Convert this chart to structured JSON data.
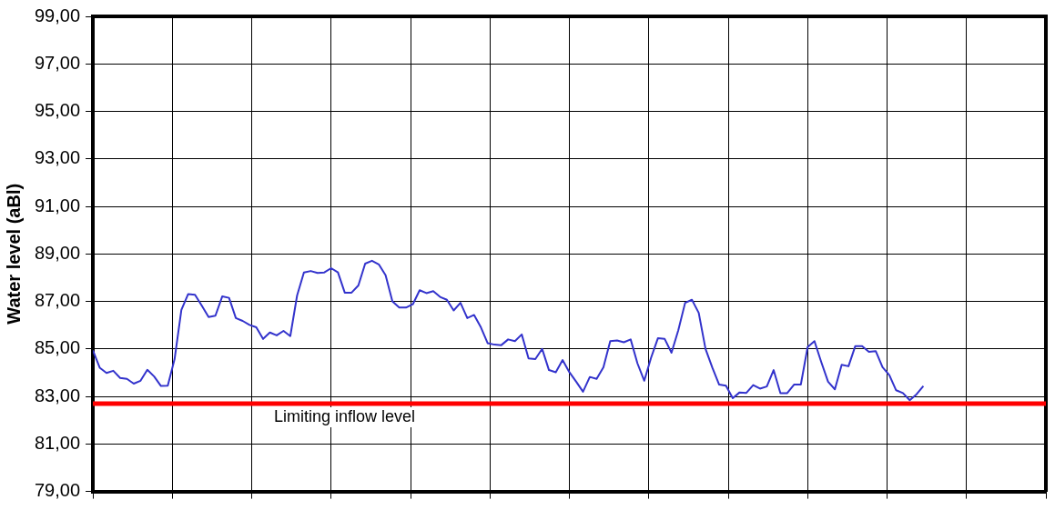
{
  "chart_data": {
    "type": "line",
    "ylabel": "Water level (aBl)",
    "categories": [
      null,
      null,
      null,
      null,
      null,
      null,
      null,
      null,
      null,
      null,
      null,
      null,
      null,
      null,
      null,
      null,
      null,
      null,
      null,
      null,
      null,
      null,
      null,
      null,
      null,
      null,
      null,
      null,
      null,
      null,
      null,
      null,
      null,
      null,
      null,
      null,
      null,
      null,
      null,
      null,
      null,
      null,
      null,
      null,
      null,
      null,
      null,
      null,
      null,
      null,
      null,
      null,
      null,
      null,
      null,
      null,
      null,
      null,
      null,
      null,
      null,
      null,
      null,
      null,
      null,
      null,
      null,
      null,
      null,
      null,
      null,
      null,
      null,
      null,
      null,
      null,
      null,
      null,
      null,
      null,
      null,
      null,
      null,
      null,
      null,
      null,
      null,
      null,
      null,
      null,
      null,
      null,
      null,
      null,
      null,
      null,
      null,
      null,
      null,
      null,
      null,
      null,
      null,
      null,
      null,
      null,
      null,
      null,
      null,
      null,
      null,
      null,
      null,
      null,
      null,
      null,
      null,
      null,
      null,
      null,
      null,
      null,
      null,
      null,
      null,
      null,
      null,
      null,
      null,
      null,
      null,
      null,
      null,
      null,
      null,
      null,
      null,
      null,
      null,
      null,
      null
    ],
    "ylim": [
      79,
      99
    ],
    "yticks": [
      {
        "value": 79,
        "label": "79,00"
      },
      {
        "value": 81,
        "label": "81,00"
      },
      {
        "value": 83,
        "label": "83,00"
      },
      {
        "value": 85,
        "label": "85,00"
      },
      {
        "value": 87,
        "label": "87,00"
      },
      {
        "value": 89,
        "label": "89,00"
      },
      {
        "value": 91,
        "label": "91,00"
      },
      {
        "value": 93,
        "label": "93,00"
      },
      {
        "value": 95,
        "label": "95,00"
      },
      {
        "value": 97,
        "label": "97,00"
      },
      {
        "value": 99,
        "label": "99,00"
      }
    ],
    "grid": true,
    "legend": false,
    "marker": "none",
    "line_style": "solid",
    "series": [
      {
        "color": "#3333cc",
        "values": [
          84.94,
          84.21,
          83.99,
          84.08,
          83.78,
          83.74,
          83.54,
          83.66,
          84.12,
          83.84,
          83.44,
          83.45,
          84.57,
          86.64,
          87.31,
          87.28,
          86.82,
          86.34,
          86.4,
          87.21,
          87.15,
          86.3,
          86.18,
          86.01,
          85.91,
          85.42,
          85.69,
          85.57,
          85.76,
          85.54,
          87.25,
          88.22,
          88.28,
          88.2,
          88.22,
          88.4,
          88.22,
          87.37,
          87.37,
          87.67,
          88.59,
          88.71,
          88.56,
          88.1,
          87.0,
          86.74,
          86.74,
          86.88,
          87.47,
          87.35,
          87.43,
          87.19,
          87.07,
          86.62,
          86.94,
          86.3,
          86.43,
          85.91,
          85.24,
          85.18,
          85.16,
          85.4,
          85.33,
          85.61,
          84.6,
          84.57,
          85.0,
          84.11,
          84.02,
          84.53,
          84.02,
          83.62,
          83.2,
          83.82,
          83.74,
          84.23,
          85.33,
          85.36,
          85.28,
          85.4,
          84.39,
          83.66,
          84.63,
          85.45,
          85.42,
          84.84,
          85.79,
          86.94,
          87.07,
          86.52,
          85.0,
          84.21,
          83.5,
          83.45,
          82.93,
          83.17,
          83.15,
          83.48,
          83.33,
          83.42,
          84.11,
          83.14,
          83.14,
          83.5,
          83.5,
          85.08,
          85.33,
          84.45,
          83.62,
          83.3,
          84.33,
          84.27,
          85.12,
          85.12,
          84.88,
          84.91,
          84.23,
          83.9,
          83.26,
          83.14,
          82.84,
          83.09,
          83.44,
          null,
          null,
          null,
          null,
          null,
          null,
          null,
          null,
          null,
          null,
          null,
          null,
          null,
          null,
          null,
          null,
          null,
          null
        ]
      }
    ],
    "ref_lines": [
      {
        "axis": "y",
        "value": 82.7,
        "label": "Limiting inflow level",
        "color": "#ff0000"
      }
    ]
  }
}
